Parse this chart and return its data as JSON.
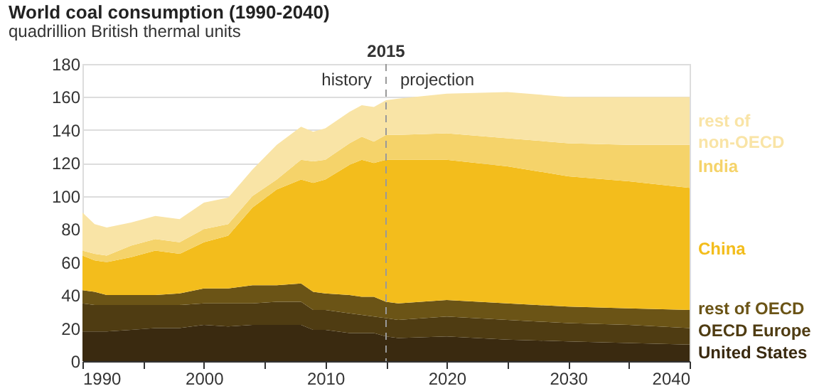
{
  "chart_data": {
    "type": "area",
    "stacked": true,
    "title": "World coal consumption (1990-2040)",
    "subtitle": "quadrillion British thermal units",
    "x": [
      1990,
      1991,
      1992,
      1994,
      1996,
      1998,
      2000,
      2002,
      2004,
      2006,
      2008,
      2009,
      2010,
      2012,
      2013,
      2014,
      2015,
      2016,
      2020,
      2025,
      2030,
      2035,
      2040
    ],
    "series": [
      {
        "name": "United States",
        "color": "#3a2a10",
        "values": [
          18,
          18,
          18,
          19,
          20,
          20,
          22,
          21,
          22,
          22,
          22,
          19,
          19,
          17,
          17,
          17,
          15,
          14,
          15,
          13,
          12,
          11,
          10
        ]
      },
      {
        "name": "OECD Europe",
        "color": "#4f3c12",
        "values": [
          17,
          16,
          16,
          15,
          14,
          14,
          13,
          14,
          13,
          14,
          14,
          12,
          12,
          12,
          11,
          10,
          11,
          11,
          12,
          12,
          11,
          11,
          10
        ]
      },
      {
        "name": "rest of OECD",
        "color": "#6b5416",
        "values": [
          8,
          8,
          6,
          6,
          6,
          7,
          9,
          9,
          11,
          10,
          11,
          11,
          10,
          11,
          11,
          12,
          10,
          10,
          10,
          10,
          10,
          10,
          11
        ]
      },
      {
        "name": "China",
        "color": "#f3bd1c",
        "values": [
          21,
          19,
          20,
          23,
          27,
          24,
          28,
          32,
          47,
          58,
          63,
          66,
          69,
          79,
          83,
          81,
          86,
          87,
          85,
          83,
          79,
          77,
          74
        ]
      },
      {
        "name": "India",
        "color": "#f5d36a",
        "values": [
          3,
          4,
          4,
          7,
          7,
          7,
          8,
          7,
          7,
          6,
          12,
          13,
          12,
          13,
          14,
          13,
          15,
          15,
          16,
          17,
          20,
          22,
          26
        ]
      },
      {
        "name": "rest of non-OECD",
        "color": "#f9e4a6",
        "values": [
          23,
          18,
          17,
          14,
          14,
          14,
          16,
          16,
          16,
          21,
          20,
          18,
          19,
          19,
          19,
          21,
          21,
          22,
          24,
          28,
          28,
          29,
          29
        ]
      }
    ],
    "xlim": [
      1990,
      2040
    ],
    "xticks": [
      1990,
      {
        "value": 1995,
        "label": null
      },
      2000,
      {
        "value": 2005,
        "label": null
      },
      2010,
      {
        "value": 2015,
        "label": null
      },
      2020,
      {
        "value": 2025,
        "label": null
      },
      2030,
      {
        "value": 2035,
        "label": null
      },
      2040
    ],
    "ylim": [
      0,
      180
    ],
    "yticks": [
      0,
      20,
      40,
      60,
      80,
      100,
      120,
      140,
      160,
      180
    ],
    "grid": "y",
    "ref_lines": [
      {
        "axis": "x",
        "value": 2015,
        "label": "2015",
        "color": "#999999",
        "line_style": "dashed"
      }
    ],
    "annotations": [
      "history",
      "projection"
    ]
  }
}
